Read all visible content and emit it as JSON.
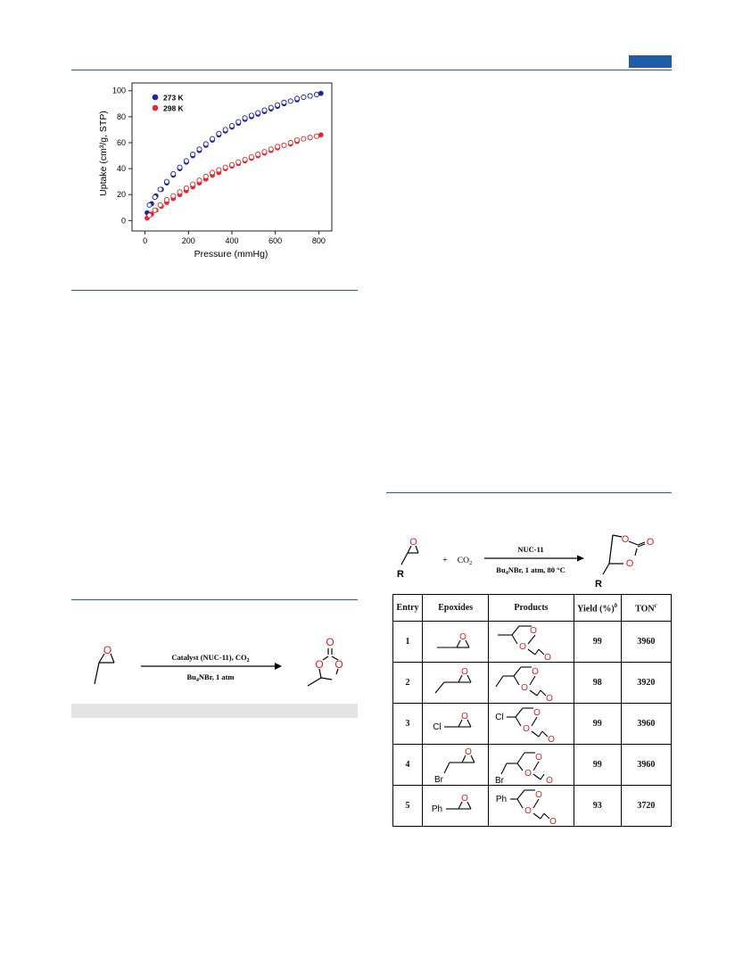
{
  "figure_chart": {
    "chart_data": {
      "type": "scatter",
      "xlabel": "Pressure (mmHg)",
      "ylabel": "Uptake (cm³/g, STP)",
      "xlim": [
        -60,
        860
      ],
      "ylim": [
        -8,
        106
      ],
      "xticks": [
        0,
        200,
        400,
        600,
        800
      ],
      "yticks": [
        0,
        20,
        40,
        60,
        80,
        100
      ],
      "legend_position": "top-left",
      "series": [
        {
          "name": "273 K",
          "color": "#1c22a8",
          "kind": "adsorption",
          "x": [
            10,
            30,
            50,
            75,
            100,
            130,
            160,
            190,
            220,
            250,
            280,
            310,
            340,
            370,
            400,
            430,
            460,
            490,
            520,
            550,
            580,
            610,
            640,
            670,
            700,
            730,
            760,
            790,
            810
          ],
          "y": [
            6,
            13,
            19,
            24,
            29,
            35,
            40,
            45,
            50,
            54,
            58,
            62,
            66,
            69,
            72,
            75,
            78,
            80,
            82,
            84,
            86,
            88,
            90,
            92,
            93,
            95,
            96,
            97,
            98
          ]
        },
        {
          "name": "",
          "color": "#1c22a8",
          "kind": "desorption",
          "x": [
            20,
            45,
            70,
            100,
            130,
            160,
            190,
            220,
            250,
            280,
            310,
            340,
            370,
            400,
            430,
            460,
            490,
            520,
            550,
            580,
            610,
            640,
            670,
            700,
            730,
            760,
            790
          ],
          "y": [
            12,
            18,
            24,
            30,
            36,
            41,
            46,
            51,
            55,
            59,
            63,
            67,
            70,
            73,
            76,
            79,
            81,
            83,
            85,
            87,
            89,
            91,
            92,
            94,
            95,
            96,
            97
          ]
        },
        {
          "name": "298 K",
          "color": "#e8262b",
          "kind": "adsorption",
          "x": [
            10,
            30,
            50,
            75,
            100,
            130,
            160,
            190,
            220,
            250,
            280,
            310,
            340,
            370,
            400,
            430,
            460,
            490,
            520,
            550,
            580,
            610,
            640,
            670,
            700,
            730,
            760,
            790,
            810
          ],
          "y": [
            2,
            5,
            8,
            11,
            14,
            17,
            20,
            23,
            26,
            29,
            32,
            35,
            37,
            40,
            42,
            44,
            46,
            48,
            50,
            52,
            54,
            56,
            58,
            59,
            61,
            63,
            64,
            65,
            66
          ]
        },
        {
          "name": "",
          "color": "#e8262b",
          "kind": "desorption",
          "x": [
            20,
            45,
            70,
            100,
            130,
            160,
            190,
            220,
            250,
            280,
            310,
            340,
            370,
            400,
            430,
            460,
            490,
            520,
            550,
            580,
            610,
            640,
            670,
            700,
            730,
            760,
            790
          ],
          "y": [
            4,
            8,
            12,
            16,
            19,
            22,
            25,
            28,
            31,
            34,
            37,
            39,
            41,
            43,
            45,
            47,
            49,
            51,
            53,
            55,
            57,
            58,
            60,
            62,
            63,
            64,
            65
          ]
        }
      ]
    }
  },
  "scheme1": {
    "arrow_top": "Catalyst (NUC-11), CO",
    "arrow_top_sub": "2",
    "arrow_bottom_pre": "Bu",
    "arrow_bottom_sub": "4",
    "arrow_bottom_post": "NBr, 1 atm",
    "atoms": {
      "O": "O"
    }
  },
  "scheme2": {
    "substituent": "R",
    "plus": "+",
    "co2": "CO",
    "co2_sub": "2",
    "arrow_top": "NUC-11",
    "arrow_bottom_pre": "Bu",
    "arrow_bottom_sub": "4",
    "arrow_bottom_post": "NBr, 1 atm, 80 °C"
  },
  "table": {
    "headers": {
      "entry": "Entry",
      "epoxides": "Epoxides",
      "products": "Products",
      "yield": "Yield (%)",
      "yield_sup": "b",
      "ton": "TON",
      "ton_sup": "c"
    },
    "rows": [
      {
        "entry": "1",
        "group": "",
        "yield": "99",
        "ton": "3960"
      },
      {
        "entry": "2",
        "group": "",
        "yield": "98",
        "ton": "3920"
      },
      {
        "entry": "3",
        "group": "Cl",
        "yield": "99",
        "ton": "3960"
      },
      {
        "entry": "4",
        "group": "Br",
        "yield": "99",
        "ton": "3960"
      },
      {
        "entry": "5",
        "group": "Ph",
        "yield": "93",
        "ton": "3720"
      }
    ]
  },
  "colors": {
    "rule": "#2b5a8c",
    "tab": "#1f5ea6",
    "oxygen": "#e21b1b",
    "blue": "#1c22a8",
    "red": "#e8262b"
  }
}
